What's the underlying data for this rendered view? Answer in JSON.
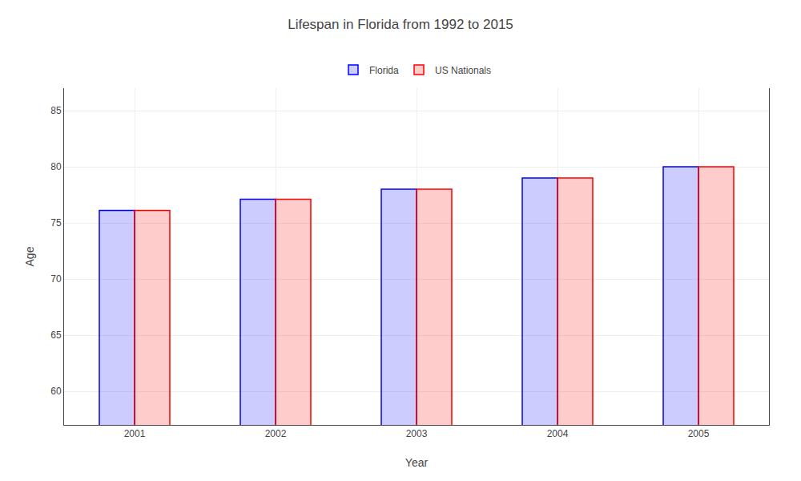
{
  "chart_data": {
    "type": "bar",
    "title": "Lifespan in Florida from 1992 to 2015",
    "xlabel": "Year",
    "ylabel": "Age",
    "categories": [
      "2001",
      "2002",
      "2003",
      "2004",
      "2005"
    ],
    "series": [
      {
        "name": "Florida",
        "color": "#0000ff",
        "values": [
          76.1,
          77.1,
          78.0,
          79.0,
          80.0
        ]
      },
      {
        "name": "US Nationals",
        "color": "#ff0000",
        "values": [
          76.1,
          77.1,
          78.0,
          79.0,
          80.0
        ]
      }
    ],
    "ylim": [
      57,
      87
    ],
    "yticks": [
      60,
      65,
      70,
      75,
      80,
      85
    ],
    "grid": true,
    "legend": "top"
  }
}
